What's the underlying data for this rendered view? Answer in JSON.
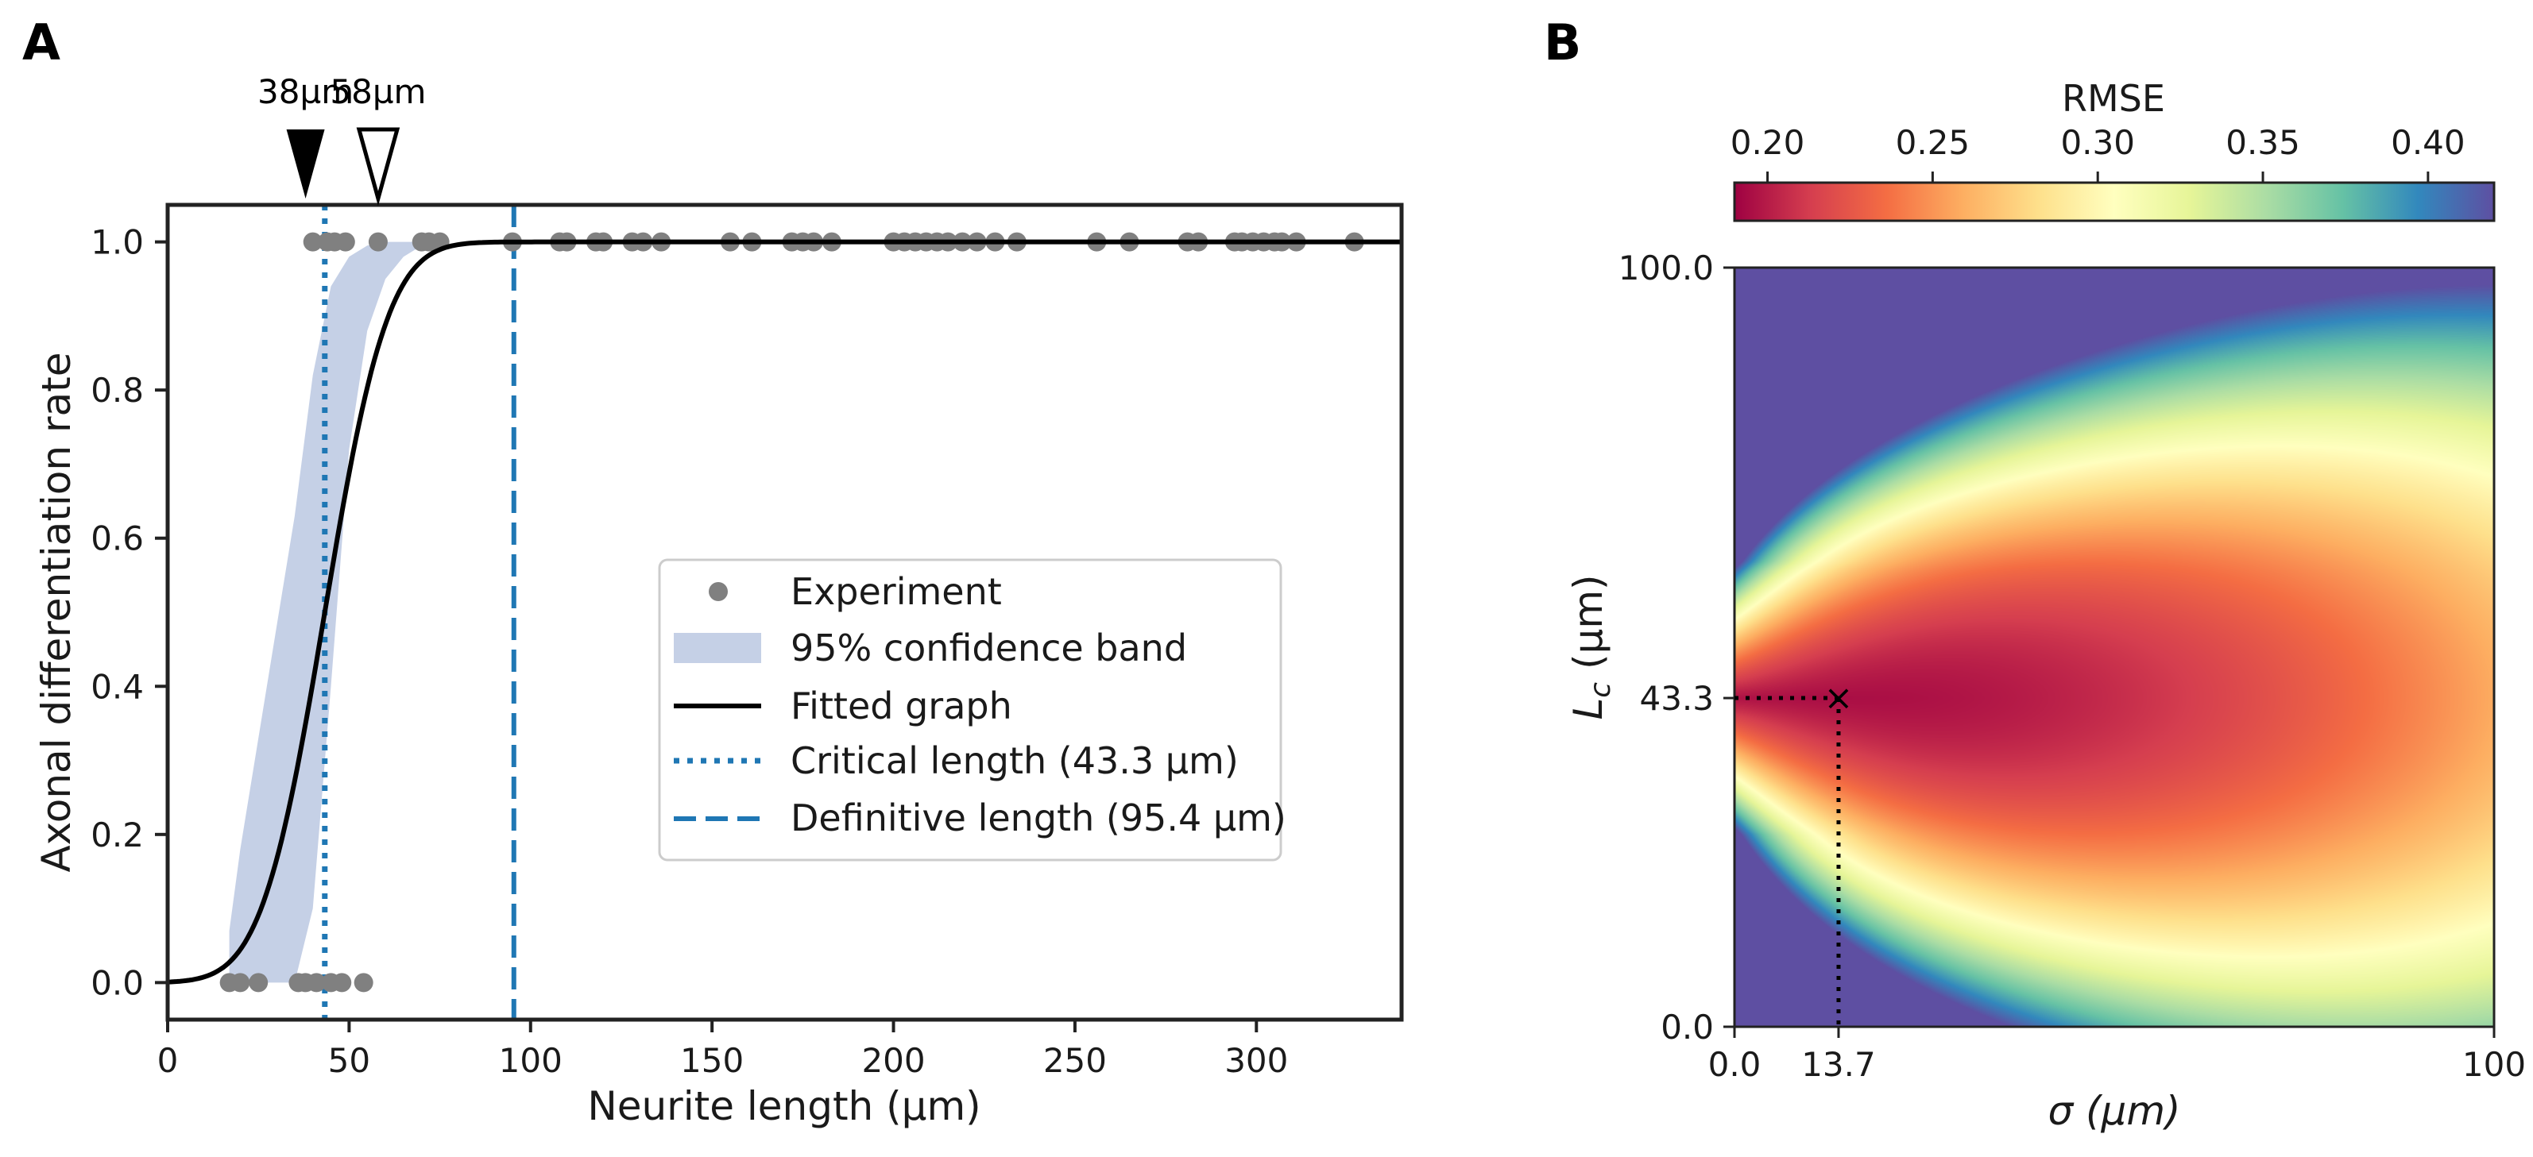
{
  "colors": {
    "points": "#808080",
    "fit": "#000000",
    "band": "#c5d0e6",
    "critical": "#1f77b4",
    "definitive": "#1f77b4",
    "axis": "#222222"
  },
  "chart_data": [
    {
      "panel": "A",
      "type": "scatter",
      "xlabel": "Neurite length (µm)",
      "ylabel": "Axonal differentiation rate",
      "xlim": [
        0,
        340
      ],
      "ylim": [
        -0.05,
        1.05
      ],
      "xticks": [
        0,
        50,
        100,
        150,
        200,
        250,
        300
      ],
      "yticks": [
        0.0,
        0.2,
        0.4,
        0.6,
        0.8,
        1.0
      ],
      "grid": false,
      "legend_position": "center-right",
      "experiment_points": {
        "name": "Experiment",
        "ones": [
          40,
          44,
          46,
          49,
          58,
          70,
          72,
          75,
          95,
          108,
          110,
          118,
          120,
          128,
          131,
          136,
          155,
          161,
          172,
          175,
          178,
          183,
          200,
          203,
          206,
          209,
          212,
          215,
          219,
          223,
          228,
          234,
          256,
          265,
          281,
          284,
          294,
          296,
          299,
          302,
          305,
          307,
          311,
          327
        ],
        "zeros": [
          17,
          20,
          25,
          36,
          38,
          41,
          45,
          48,
          54
        ]
      },
      "confidence_band": {
        "name": "95% confidence band",
        "x": [
          17,
          20,
          25,
          30,
          35,
          40,
          45,
          50,
          55,
          60,
          65,
          70,
          75,
          80,
          90,
          95
        ],
        "lower": [
          0.0,
          0.0,
          0.0,
          0.0,
          0.0,
          0.1,
          0.4,
          0.72,
          0.88,
          0.95,
          0.98,
          0.995,
          1.0,
          1.0,
          1.0,
          1.0
        ],
        "upper": [
          0.07,
          0.18,
          0.33,
          0.48,
          0.63,
          0.82,
          0.94,
          0.98,
          0.995,
          1.0,
          1.0,
          1.0,
          1.0,
          1.0,
          1.0,
          1.0
        ]
      },
      "fitted_graph": {
        "name": "Fitted graph",
        "critical_length": 43.3,
        "sigma": 13.7,
        "x_start": 0,
        "x_end": 340
      },
      "critical_length": {
        "name": "Critical length (43.3 µm)",
        "x": 43.3
      },
      "definitive_length": {
        "name": "Definitive length (95.4 µm)",
        "x": 95.4
      },
      "markers": [
        {
          "label": "38µm",
          "x": 38,
          "style": "filled"
        },
        {
          "label": "58µm",
          "x": 58,
          "style": "open"
        }
      ]
    },
    {
      "panel": "B",
      "type": "heatmap",
      "xlabel": "σ (µm)",
      "ylabel_main": "L",
      "ylabel_sub": "c",
      "ylabel_unit": " (µm)",
      "xlim": [
        0,
        100
      ],
      "ylim": [
        0,
        100
      ],
      "xtick_labels": [
        "0.0",
        "13.7",
        "100"
      ],
      "xtick_values": [
        0,
        13.7,
        100
      ],
      "ytick_labels": [
        "0.0",
        "43.3",
        "100.0"
      ],
      "ytick_values": [
        0,
        43.3,
        100
      ],
      "colorbar": {
        "title": "RMSE",
        "ticks": [
          "0.20",
          "0.25",
          "0.30",
          "0.35",
          "0.40"
        ],
        "tick_values": [
          0.2,
          0.25,
          0.3,
          0.35,
          0.4
        ],
        "range": [
          0.19,
          0.42
        ],
        "colormap": "Spectral"
      },
      "optimum": {
        "sigma": 13.7,
        "Lc": 43.3,
        "marker": "×"
      }
    }
  ]
}
